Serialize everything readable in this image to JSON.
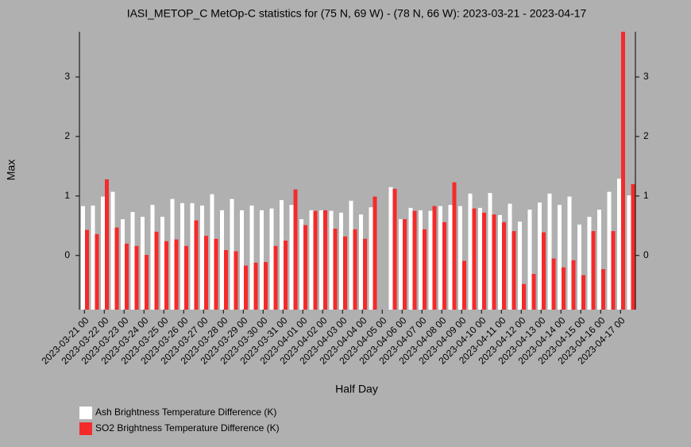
{
  "chart_data": {
    "type": "bar",
    "title": "IASI_METOP_C MetOp-C statistics for (75 N, 69 W) - (78 N, 66 W): 2023-03-21 - 2023-04-17",
    "x_label": "Half Day",
    "y_label": "Max",
    "categories": [
      "2023-03-21 00",
      null,
      "2023-03-22 00",
      null,
      "2023-03-23 00",
      null,
      "2023-03-24 00",
      null,
      "2023-03-25 00",
      null,
      "2023-03-26 00",
      null,
      "2023-03-27 00",
      null,
      "2023-03-28 00",
      null,
      "2023-03-29 00",
      null,
      "2023-03-30 00",
      null,
      "2023-03-31 00",
      null,
      "2023-04-01 00",
      null,
      "2023-04-02 00",
      null,
      "2023-04-03 00",
      null,
      "2023-04-04 00",
      null,
      "2023-04-05 00",
      null,
      "2023-04-06 00",
      null,
      "2023-04-07 00",
      null,
      "2023-04-08 00",
      null,
      "2023-04-09 00",
      null,
      "2023-04-10 00",
      null,
      "2023-04-11 00",
      null,
      "2023-04-12 00",
      null,
      "2023-04-13 00",
      null,
      "2023-04-14 00",
      null,
      "2023-04-15 00",
      null,
      "2023-04-16 00",
      null,
      "2023-04-17 00",
      null
    ],
    "series": [
      {
        "name": "Ash Brightness Temperature Difference (K)",
        "color": "#ffffff",
        "values": [
          0.83,
          0.84,
          0.99,
          1.07,
          0.61,
          0.73,
          0.65,
          0.85,
          0.65,
          0.95,
          0.88,
          0.88,
          0.84,
          1.03,
          0.76,
          0.95,
          0.76,
          0.84,
          0.76,
          0.79,
          0.93,
          0.85,
          0.61,
          0.76,
          0.76,
          0.75,
          0.72,
          0.92,
          0.69,
          0.81,
          null,
          1.15,
          0.61,
          0.8,
          0.76,
          0.75,
          0.83,
          0.85,
          0.83,
          1.04,
          0.8,
          1.05,
          0.68,
          0.87,
          0.57,
          0.77,
          0.89,
          1.04,
          0.85,
          0.99,
          0.52,
          0.65,
          0.77,
          1.07,
          1.29,
          1.01
        ]
      },
      {
        "name": "SO2 Brightness Temperature Difference (K)",
        "color": "#f52a2a",
        "values": [
          0.43,
          0.36,
          1.28,
          0.47,
          0.2,
          0.16,
          0.01,
          0.4,
          0.24,
          0.27,
          0.16,
          0.59,
          0.33,
          0.28,
          0.09,
          0.07,
          -0.17,
          -0.12,
          -0.11,
          0.16,
          0.25,
          1.11,
          0.51,
          0.75,
          0.76,
          0.45,
          0.32,
          0.44,
          0.28,
          0.99,
          null,
          1.12,
          0.61,
          0.75,
          0.44,
          0.83,
          0.56,
          1.23,
          -0.09,
          0.79,
          0.72,
          0.69,
          0.56,
          0.41,
          -0.48,
          -0.31,
          0.39,
          -0.05,
          -0.2,
          -0.08,
          -0.33,
          0.41,
          -0.23,
          0.41,
          3.76,
          1.2
        ]
      }
    ],
    "ylim": [
      -0.91,
      3.76
    ],
    "yticks": [
      0,
      1,
      2,
      3
    ]
  }
}
